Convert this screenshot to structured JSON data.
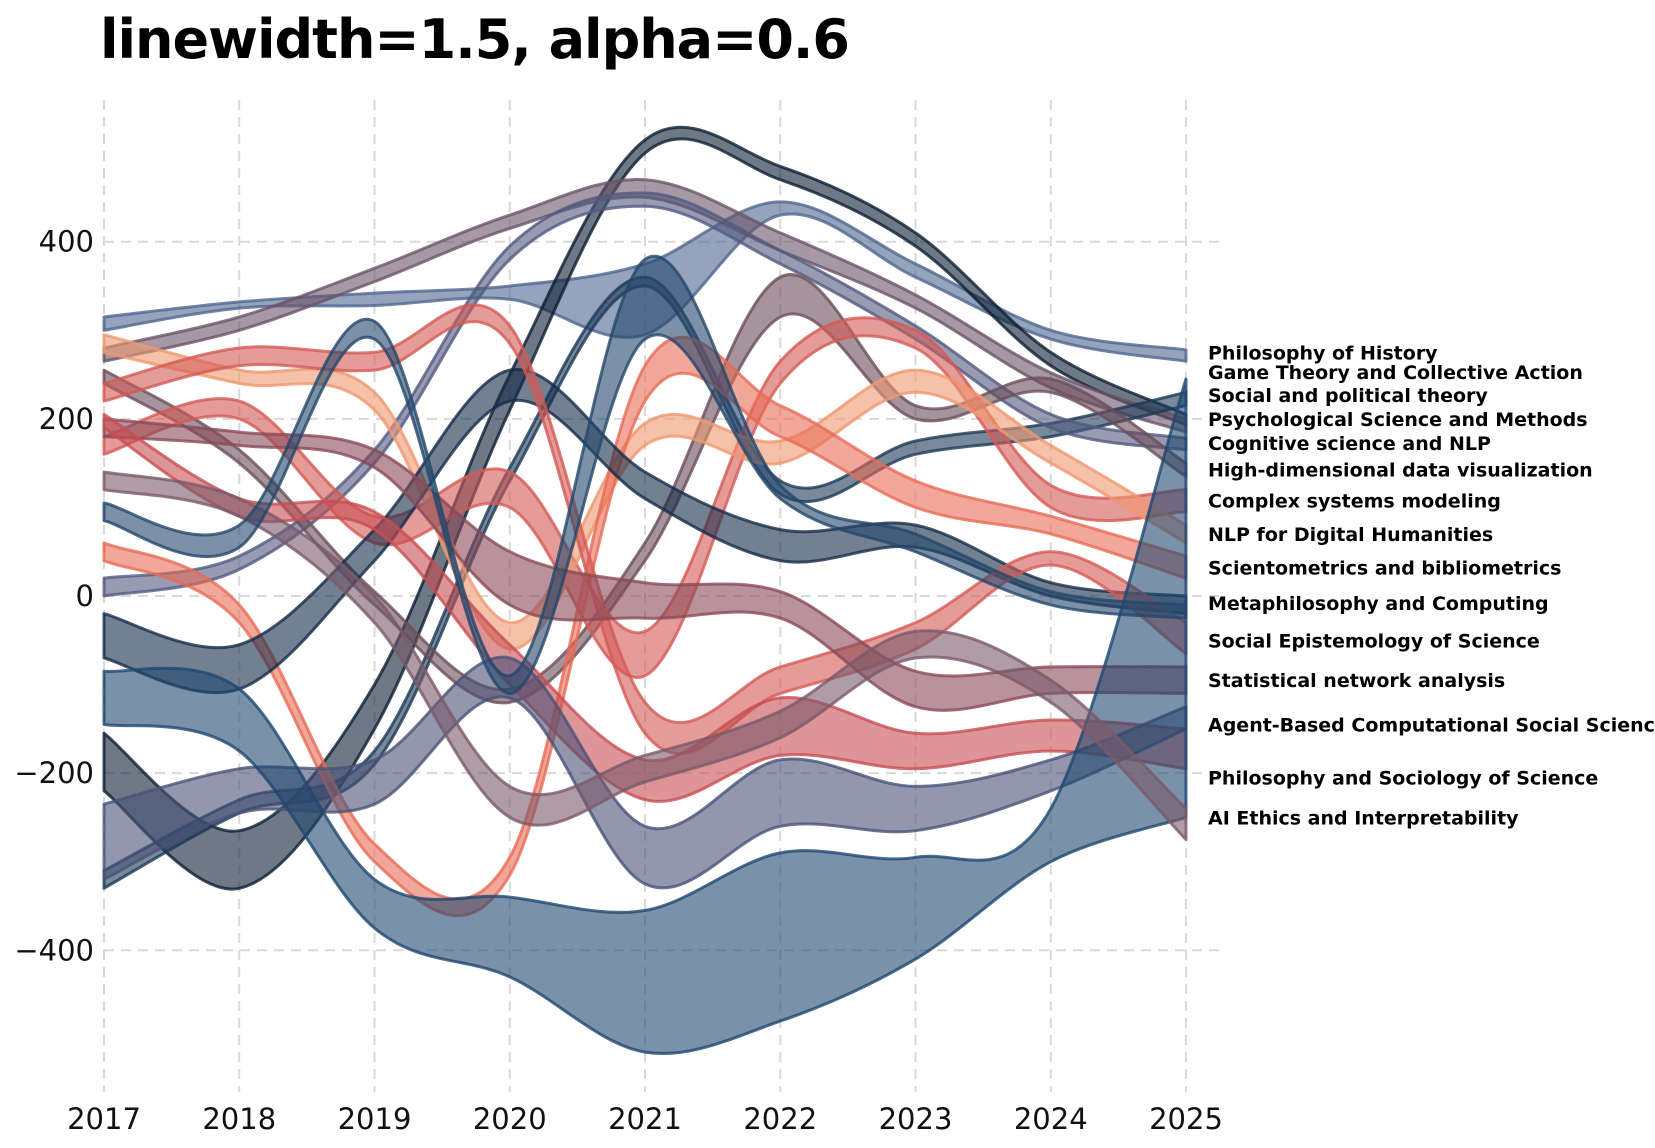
{
  "chart_data": {
    "type": "area",
    "title": "linewidth=1.5, alpha=0.6",
    "xlabel": "",
    "ylabel": "",
    "x": [
      2017,
      2018,
      2019,
      2020,
      2021,
      2022,
      2023,
      2024,
      2025
    ],
    "xlim": [
      2017,
      2025.3
    ],
    "ylim": [
      -560,
      560
    ],
    "yticks": [
      -400,
      -200,
      0,
      200,
      400
    ],
    "yticklabels": [
      "−400",
      "−200",
      "0",
      "200",
      "400"
    ],
    "grid": true,
    "line_width": 1.5,
    "alpha": 0.6,
    "series": [
      {
        "name": "Philosophy of History",
        "color": "#4f6690",
        "label_value": 275,
        "lower": [
          300,
          325,
          328,
          335,
          295,
          430,
          360,
          290,
          265
        ],
        "upper": [
          315,
          332,
          342,
          350,
          375,
          445,
          375,
          300,
          278
        ]
      },
      {
        "name": "Game Theory and Collective Action",
        "color": "#0d1f33",
        "label_value": 253,
        "lower": [
          -220,
          -330,
          -150,
          210,
          500,
          470,
          395,
          260,
          193
        ],
        "upper": [
          -155,
          -265,
          -100,
          250,
          515,
          485,
          410,
          275,
          205
        ]
      },
      {
        "name": "Social and political theory",
        "color": "#6b5468",
        "label_value": 227,
        "lower": [
          265,
          300,
          355,
          415,
          450,
          390,
          325,
          235,
          185
        ],
        "upper": [
          280,
          315,
          370,
          430,
          470,
          410,
          340,
          252,
          200
        ]
      },
      {
        "name": "Psychological Science and Methods",
        "color": "#1d3a58",
        "label_value": 200,
        "lower": [
          -330,
          -245,
          -190,
          130,
          350,
          115,
          160,
          180,
          215
        ],
        "upper": [
          -310,
          -230,
          -175,
          145,
          360,
          130,
          175,
          195,
          230
        ]
      },
      {
        "name": "Cognitive science and NLP",
        "color": "#525a80",
        "label_value": 173,
        "lower": [
          0,
          30,
          150,
          380,
          440,
          375,
          290,
          190,
          165
        ],
        "upper": [
          20,
          45,
          165,
          395,
          455,
          390,
          305,
          205,
          178
        ]
      },
      {
        "name": "High-dimensional data visualization",
        "color": "#6b4d5a",
        "label_value": 143,
        "lower": [
          240,
          150,
          -10,
          -120,
          40,
          315,
          200,
          230,
          135
        ],
        "upper": [
          255,
          165,
          5,
          -105,
          60,
          360,
          215,
          245,
          150
        ]
      },
      {
        "name": "Complex systems modeling",
        "color": "#d45a55",
        "label_value": 108,
        "lower": [
          160,
          200,
          60,
          100,
          -90,
          240,
          280,
          100,
          95
        ],
        "upper": [
          180,
          220,
          90,
          140,
          -40,
          265,
          300,
          125,
          120
        ]
      },
      {
        "name": "NLP for Digital Humanities",
        "color": "#ef9870",
        "label_value": 70,
        "lower": [
          275,
          240,
          210,
          -60,
          170,
          150,
          230,
          150,
          60
        ],
        "upper": [
          295,
          255,
          230,
          -30,
          195,
          175,
          255,
          170,
          80
        ]
      },
      {
        "name": "Scientometrics and bibliometrics",
        "color": "#e86c55",
        "label_value": 32,
        "lower": [
          40,
          -30,
          -300,
          -315,
          220,
          180,
          100,
          70,
          20
        ],
        "upper": [
          60,
          -10,
          -280,
          -295,
          260,
          215,
          130,
          90,
          45
        ]
      },
      {
        "name": "Metaphilosophy and Computing",
        "color": "#142c4a",
        "label_value": -8,
        "lower": [
          -70,
          -105,
          40,
          220,
          110,
          40,
          55,
          0,
          -20
        ],
        "upper": [
          -20,
          -55,
          75,
          255,
          140,
          75,
          80,
          15,
          0
        ]
      },
      {
        "name": "Social Epistemology of Science",
        "color": "#d45a55",
        "label_value": -50,
        "lower": [
          220,
          260,
          255,
          285,
          -155,
          -110,
          -60,
          35,
          -65
        ],
        "upper": [
          240,
          280,
          275,
          305,
          -120,
          -80,
          -30,
          50,
          -30
        ]
      },
      {
        "name": "Statistical network analysis",
        "color": "#8a4a58",
        "label_value": -95,
        "lower": [
          180,
          170,
          145,
          -10,
          -25,
          -25,
          -125,
          -110,
          -110
        ],
        "upper": [
          200,
          185,
          165,
          50,
          15,
          5,
          -85,
          -80,
          -80
        ]
      },
      {
        "name": "Agent-Based Computational Social Science",
        "color": "#c84e52",
        "label_value": -145,
        "lower": [
          190,
          90,
          75,
          -100,
          -230,
          -180,
          -195,
          -175,
          -195
        ],
        "upper": [
          205,
          110,
          95,
          -55,
          -185,
          -115,
          -155,
          -140,
          -150
        ]
      },
      {
        "name": "Philosophy and Sociology of Science",
        "color": "#4a5278",
        "label_value": -205,
        "lower": [
          -320,
          -245,
          -235,
          -115,
          -325,
          -260,
          -265,
          -220,
          -150
        ],
        "upper": [
          -235,
          -195,
          -185,
          -70,
          -260,
          -185,
          -215,
          -185,
          -125
        ]
      },
      {
        "name": "AI Ethics and Interpretability",
        "color": "#1f4770",
        "label_value": -250,
        "lower": [
          -145,
          -175,
          -375,
          -430,
          -515,
          -480,
          -410,
          -300,
          -250
        ],
        "upper": [
          -85,
          -105,
          -320,
          -340,
          -355,
          -290,
          -295,
          -240,
          245
        ]
      },
      {
        "name": "",
        "color": "#7a5a6a",
        "label_value": null,
        "lower": [
          120,
          90,
          -30,
          -250,
          -210,
          -160,
          -70,
          -120,
          -275
        ],
        "upper": [
          140,
          110,
          0,
          -215,
          -180,
          -130,
          -40,
          -95,
          -240
        ]
      },
      {
        "name": "",
        "color": "#24476c",
        "label_value": null,
        "lower": [
          85,
          55,
          290,
          -110,
          290,
          110,
          50,
          -10,
          -25
        ],
        "upper": [
          105,
          80,
          310,
          -90,
          380,
          125,
          70,
          5,
          -10
        ]
      }
    ]
  }
}
